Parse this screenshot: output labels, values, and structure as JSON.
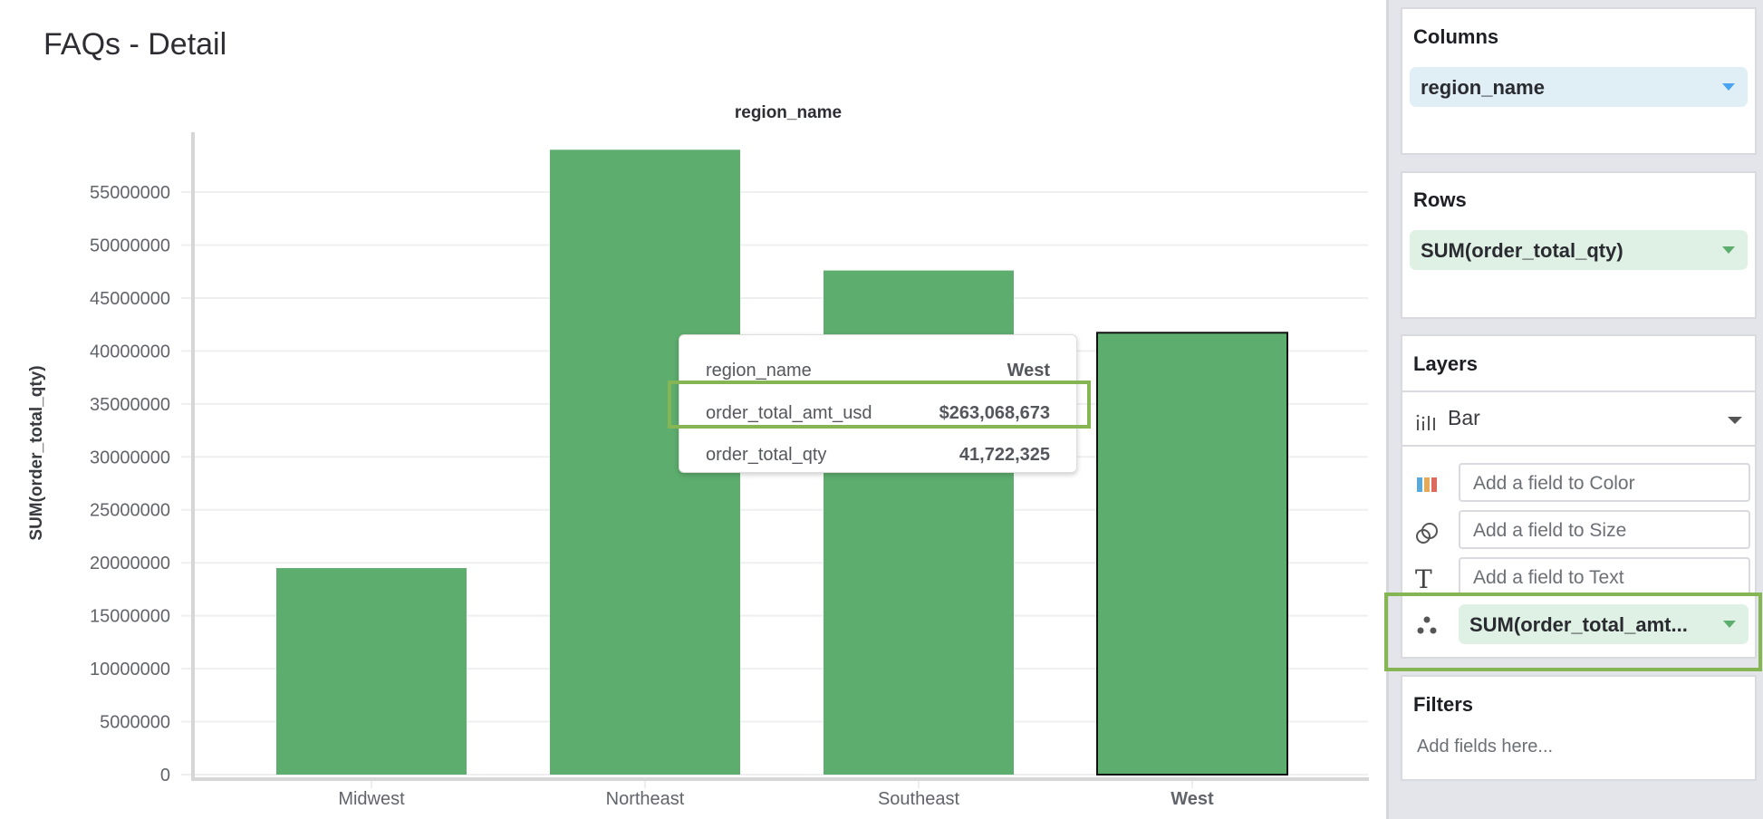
{
  "page": {
    "title": "FAQs - Detail"
  },
  "chart_data": {
    "type": "bar",
    "title": "region_name",
    "xlabel": "",
    "ylabel": "SUM(order_total_qty)",
    "categories": [
      "Midwest",
      "Northeast",
      "Southeast",
      "West"
    ],
    "values": [
      19500000,
      59000000,
      47600000,
      41722325
    ],
    "yticks": [
      "0",
      "5000000",
      "10000000",
      "15000000",
      "20000000",
      "25000000",
      "30000000",
      "35000000",
      "40000000",
      "45000000",
      "50000000",
      "55000000"
    ],
    "ylim": [
      0,
      60650000
    ],
    "grid": true,
    "bar_color": "#5dad6e",
    "selected": "West"
  },
  "tooltip": {
    "rows": [
      {
        "label": "region_name",
        "value": "West"
      },
      {
        "label": "order_total_amt_usd",
        "value": "$263,068,673"
      },
      {
        "label": "order_total_qty",
        "value": "41,722,325"
      }
    ],
    "highlight_color": "#86b553"
  },
  "sidebar": {
    "columns": {
      "title": "Columns",
      "pill": "region_name",
      "pill_color": "#e0eef5"
    },
    "rows": {
      "title": "Rows",
      "pill": "SUM(order_total_qty)",
      "pill_color": "#dff0e4"
    },
    "layers": {
      "title": "Layers",
      "mark_type": "Bar",
      "color_placeholder": "Add a field to Color",
      "size_placeholder": "Add a field to Size",
      "text_placeholder": "Add a field to Text",
      "detail_pill": "SUM(order_total_amt..."
    },
    "filters": {
      "title": "Filters",
      "placeholder": "Add fields here..."
    }
  }
}
